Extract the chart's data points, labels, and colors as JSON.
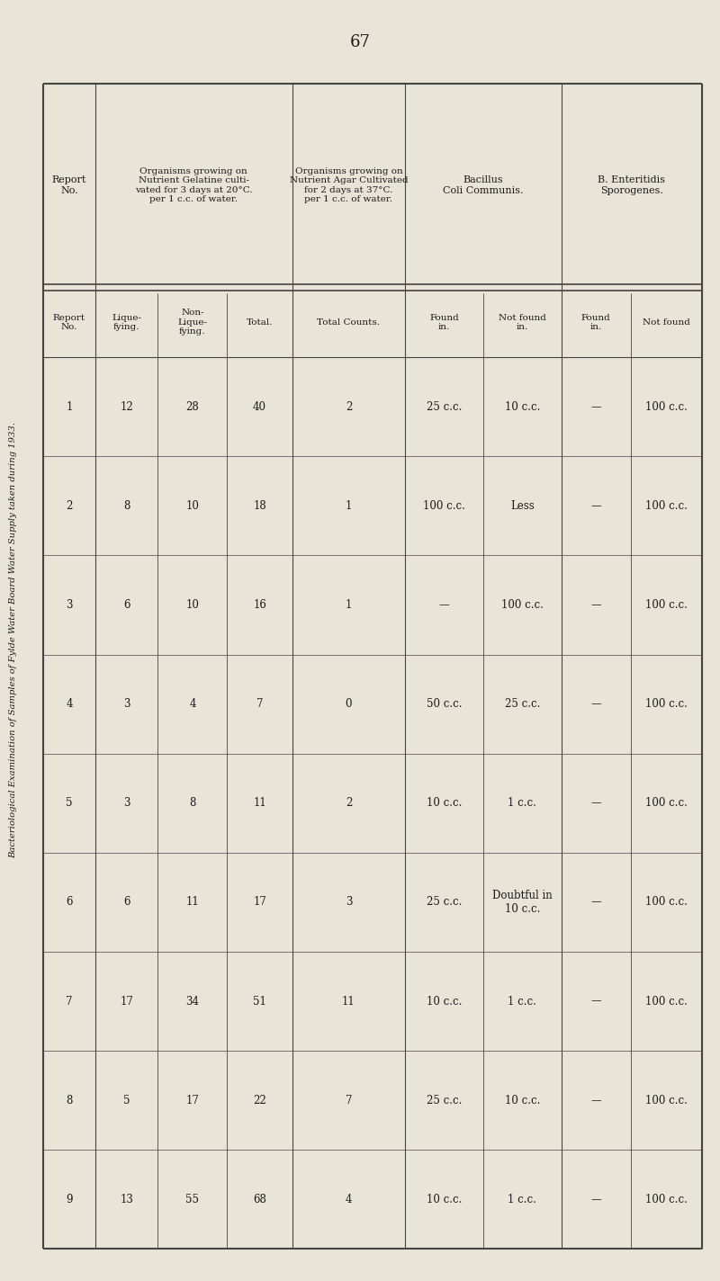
{
  "page_number": "67",
  "side_title": "Bacteriological Examination of Samples of Fylde Water Board Water Supply taken during 1933.",
  "bg_color": "#e8e4d8",
  "text_color": "#1a1a1a",
  "rows": [
    [
      "1",
      "12",
      "28",
      "40",
      "2",
      "25 c.c.",
      "10 c.c.",
      "—",
      "100 c.c."
    ],
    [
      "2",
      "8",
      "10",
      "18",
      "1",
      "100 c.c.",
      "Less",
      "—",
      "100 c.c."
    ],
    [
      "3",
      "6",
      "10",
      "16",
      "1",
      "—",
      "100 c.c.",
      "—",
      "100 c.c."
    ],
    [
      "4",
      "3",
      "4",
      "7",
      "0",
      "50 c.c.",
      "25 c.c.",
      "—",
      "100 c.c."
    ],
    [
      "5",
      "3",
      "8",
      "11",
      "2",
      "10 c.c.",
      "1 c.c.",
      "—",
      "100 c.c."
    ],
    [
      "6",
      "6",
      "11",
      "17",
      "3",
      "25 c.c.",
      "Doubtful in\n10 c.c.",
      "—",
      "100 c.c."
    ],
    [
      "7",
      "17",
      "34",
      "51",
      "11",
      "10 c.c.",
      "1 c.c.",
      "—",
      "100 c.c."
    ],
    [
      "8",
      "5",
      "17",
      "22",
      "7",
      "25 c.c.",
      "10 c.c.",
      "—",
      "100 c.c."
    ],
    [
      "9",
      "13",
      "55",
      "68",
      "4",
      "10 c.c.",
      "1 c.c.",
      "—",
      "100 c.c."
    ]
  ],
  "col_headers_rot": [
    "Report\nNo.",
    "Lique-\nfying.",
    "Non-\nLique-\nfying.",
    "Total.",
    "Total Counts.",
    "Found\nin.",
    "Not found\nin.",
    "Found\nin.",
    "Not found"
  ],
  "group_headers": [
    {
      "label": "",
      "span": [
        0,
        0
      ]
    },
    {
      "label": "Organisms growing on\nNutrient Gelatine culti-\nvated for 3 days at 20°C.\nper 1 c.c. of water.",
      "span": [
        1,
        3
      ]
    },
    {
      "label": "Organisms growing on\nNutrient Agar Cultivated\nfor 2 days at 37°C.\nper 1 c.c. of water.",
      "span": [
        4,
        4
      ]
    },
    {
      "label": "Bacillus\nColi Communis.",
      "span": [
        5,
        6
      ]
    },
    {
      "label": "B. Enteritidis\nSporogenes.",
      "span": [
        7,
        8
      ]
    }
  ]
}
